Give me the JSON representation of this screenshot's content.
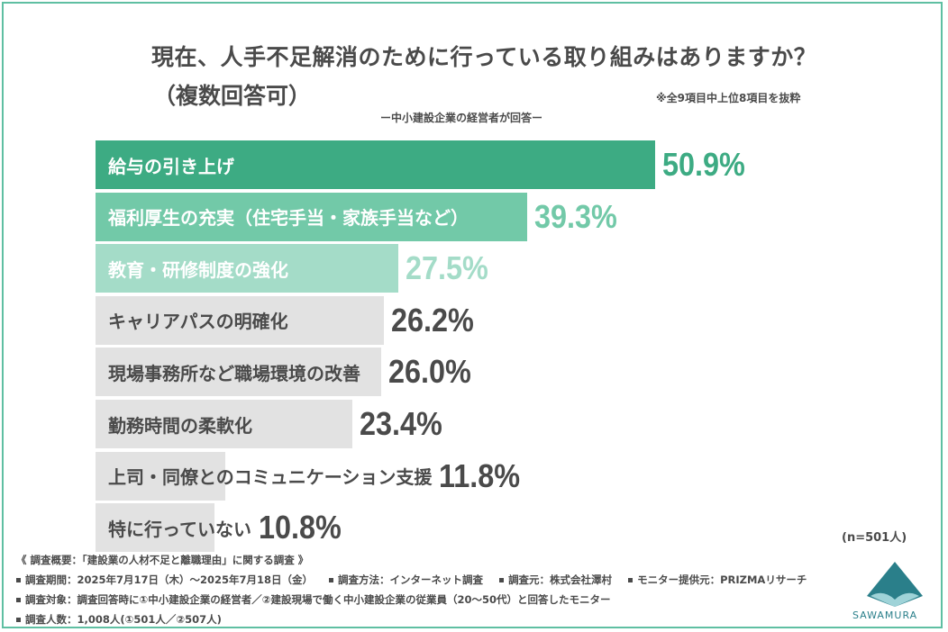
{
  "title": "現在、人手不足解消のために行っている取り組みはありますか？",
  "subtitle": "（複数回答可）",
  "note": "※全9項目中上位8項目を抜粋",
  "respondent": "ー中小建設企業の経営者が回答ー",
  "n_label": "(n=501人)",
  "colors": {
    "top1": "#3dab83",
    "top2": "#72c9a8",
    "top3": "#a4dcc8",
    "gray": "#e2e2e2",
    "text_dark": "#4a4a4a",
    "frame": "#5fbfa2"
  },
  "chart_data": {
    "type": "bar",
    "orientation": "horizontal",
    "title": "現在、人手不足解消のために行っている取り組みはありますか？（複数回答可）",
    "unit": "%",
    "categories": [
      "給与の引き上げ",
      "福利厚生の充実（住宅手当・家族手当など）",
      "教育・研修制度の強化",
      "キャリアパスの明確化",
      "現場事務所など職場環境の改善",
      "勤務時間の柔軟化",
      "上司・同僚とのコミュニケーション支援",
      "特に行っていない"
    ],
    "values": [
      50.9,
      39.3,
      27.5,
      26.2,
      26.0,
      23.4,
      11.8,
      10.8
    ],
    "value_labels": [
      "50.9%",
      "39.3%",
      "27.5%",
      "26.2%",
      "26.0%",
      "23.4%",
      "11.8%",
      "10.8%"
    ]
  },
  "footer": {
    "survey_title": "《 調査概要：「建設業の人材不足と離職理由」に関する調査 》",
    "period": "調査期間：2025年7月17日（木）～2025年7月18日（金）",
    "method": "調査方法：インターネット調査",
    "organizer": "調査元：株式会社澤村",
    "monitor": "モニター提供元：PRIZMAリサーチ",
    "target": "調査対象：調査回答時に①中小建設企業の経営者／②建設現場で働く中小建設企業の従業員（20～50代）と回答したモニター",
    "count": "調査人数：1,008人(①501人／②507人)"
  },
  "logo_text": "SAWAMURA"
}
